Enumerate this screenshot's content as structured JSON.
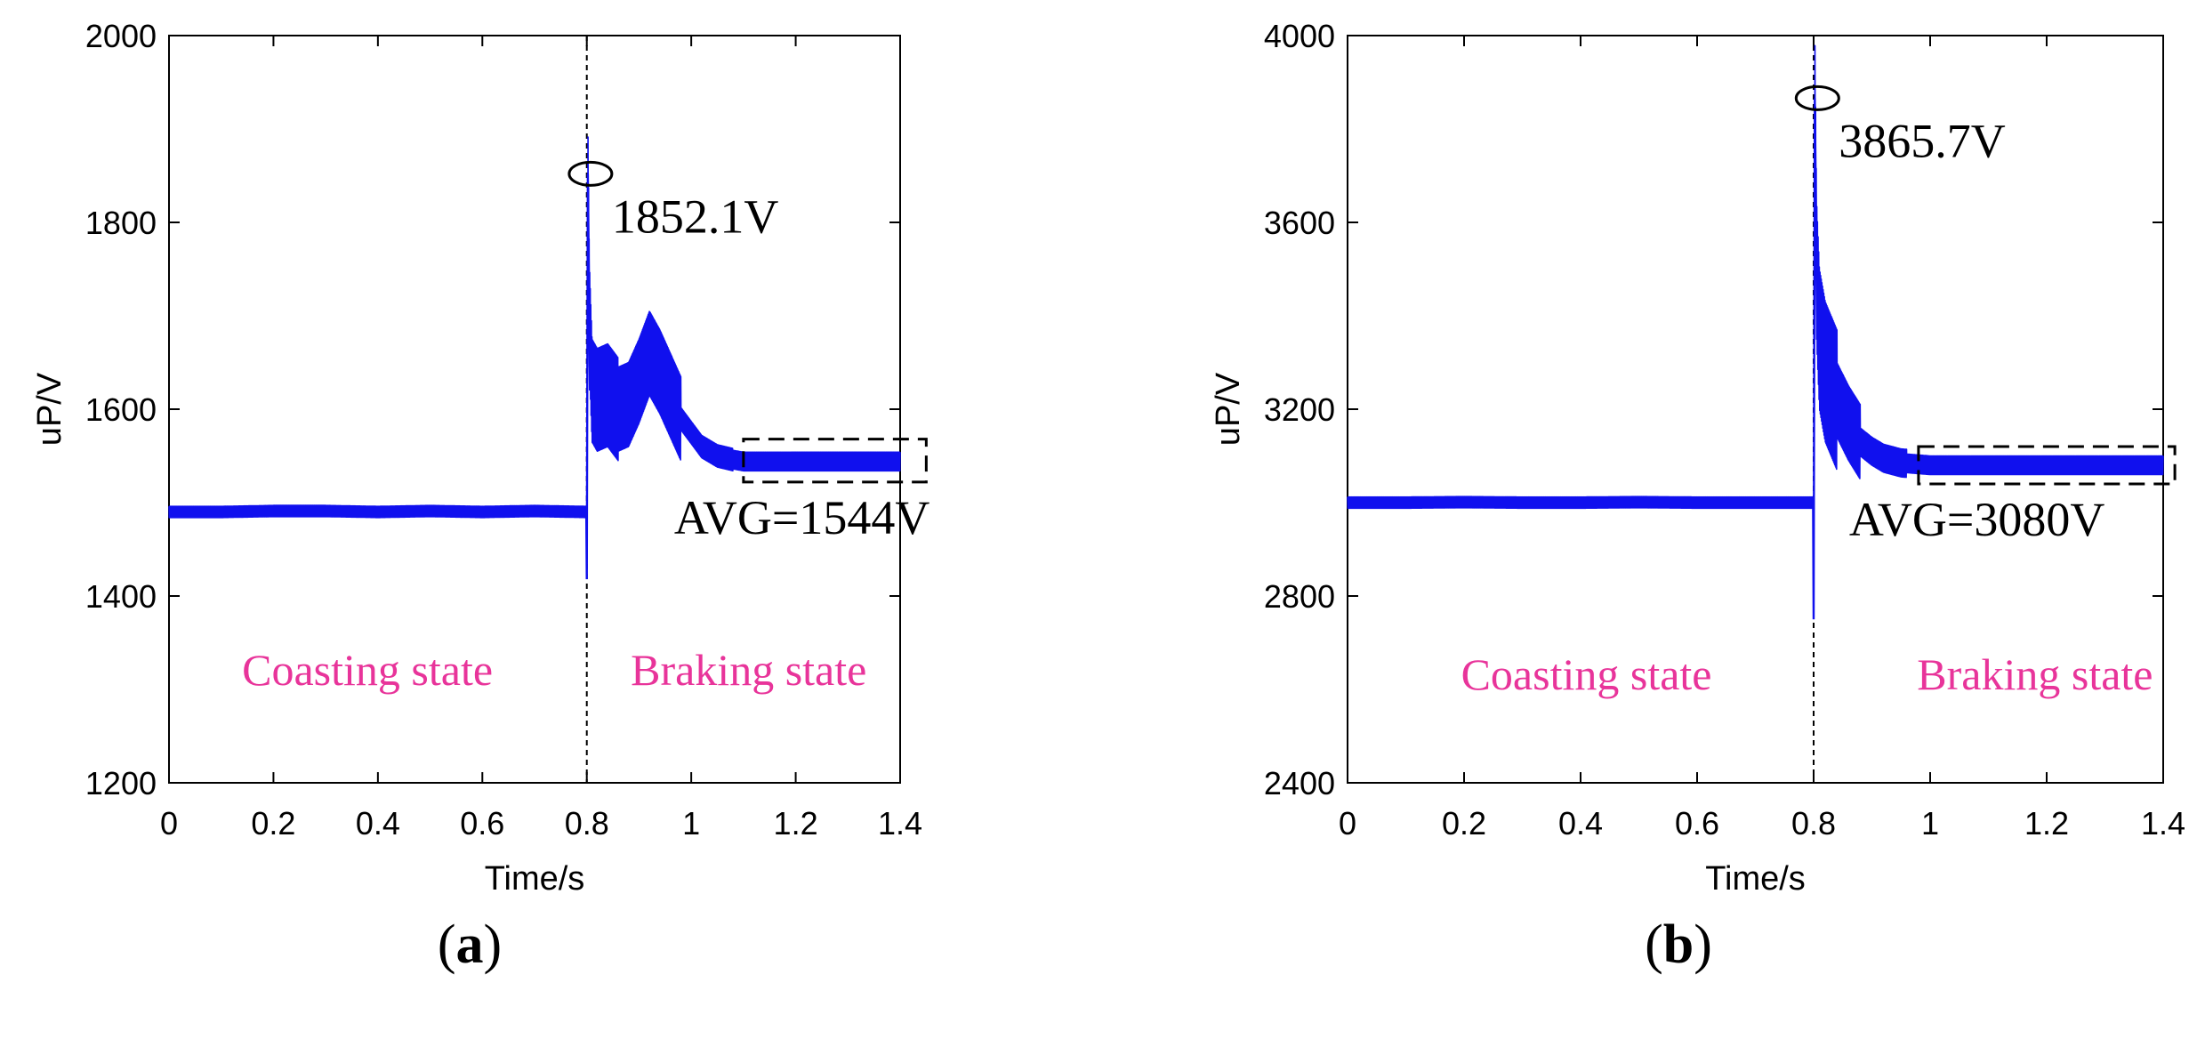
{
  "colors": {
    "signal": "#1010ee",
    "state_text": "#e8349a",
    "axis": "#000000"
  },
  "chart_data": [
    {
      "type": "line",
      "panel_label": {
        "open": "(",
        "letter": "a",
        "close": ")"
      },
      "xlabel": "Time/s",
      "ylabel": "uP/V",
      "xlim": [
        0,
        1.4
      ],
      "ylim": [
        1200,
        2000
      ],
      "xticks": [
        0,
        0.2,
        0.4,
        0.6,
        0.8,
        1,
        1.2,
        1.4
      ],
      "xtick_labels": [
        "0",
        "0.2",
        "0.4",
        "0.6",
        "0.8",
        "1",
        "1.2",
        "1.4"
      ],
      "yticks": [
        1200,
        1400,
        1600,
        1800,
        2000
      ],
      "ytick_labels": [
        "1200",
        "1400",
        "1600",
        "1800",
        "2000"
      ],
      "switch_time": 0.8,
      "series": [
        {
          "name": "uP",
          "x": [
            0,
            0.1,
            0.2,
            0.3,
            0.4,
            0.5,
            0.6,
            0.7,
            0.799,
            0.8,
            0.802,
            0.805,
            0.81,
            0.82,
            0.84,
            0.86,
            0.88,
            0.9,
            0.92,
            0.94,
            0.96,
            0.98,
            1.0,
            1.02,
            1.05,
            1.08,
            1.1,
            1.15,
            1.2,
            1.25,
            1.3,
            1.35,
            1.4
          ],
          "y": [
            1490,
            1490,
            1491,
            1491,
            1490,
            1491,
            1490,
            1491,
            1490,
            1418,
            1852,
            1700,
            1620,
            1610,
            1615,
            1600,
            1605,
            1630,
            1660,
            1640,
            1615,
            1590,
            1575,
            1560,
            1550,
            1546,
            1544,
            1544,
            1544,
            1544,
            1544,
            1544,
            1544
          ]
        }
      ],
      "ripple": [
        {
          "t0": 0,
          "t1": 0.8,
          "amp": 6
        },
        {
          "t0": 0.8,
          "t1": 0.86,
          "amp": 55
        },
        {
          "t0": 0.86,
          "t1": 0.98,
          "amp": 45
        },
        {
          "t0": 0.98,
          "t1": 1.08,
          "amp": 12
        },
        {
          "t0": 1.08,
          "t1": 1.4,
          "amp": 10
        }
      ],
      "peak": {
        "x": 0.802,
        "y": 1852,
        "label": "1852.1V"
      },
      "avg": {
        "x_from": 1.1,
        "x_to": 1.45,
        "y_from": 1522,
        "y_to": 1568,
        "label": "AVG=1544V"
      },
      "states": [
        {
          "label": "Coasting state",
          "x": 0.38,
          "y": 1305
        },
        {
          "label": "Braking state",
          "x": 1.11,
          "y": 1305
        }
      ]
    },
    {
      "type": "line",
      "panel_label": {
        "open": "(",
        "letter": "b",
        "close": ")"
      },
      "xlabel": "Time/s",
      "ylabel": "uP/V",
      "xlim": [
        0,
        1.4
      ],
      "ylim": [
        2400,
        4000
      ],
      "xticks": [
        0,
        0.2,
        0.4,
        0.6,
        0.8,
        1,
        1.2,
        1.4
      ],
      "xtick_labels": [
        "0",
        "0.2",
        "0.4",
        "0.6",
        "0.8",
        "1",
        "1.2",
        "1.4"
      ],
      "yticks": [
        2400,
        2800,
        3200,
        3600,
        4000
      ],
      "ytick_labels": [
        "2400",
        "2800",
        "3200",
        "3600",
        "4000"
      ],
      "switch_time": 0.8,
      "series": [
        {
          "name": "uP",
          "x": [
            0,
            0.1,
            0.2,
            0.3,
            0.4,
            0.5,
            0.6,
            0.7,
            0.799,
            0.8,
            0.802,
            0.805,
            0.81,
            0.82,
            0.84,
            0.86,
            0.88,
            0.9,
            0.92,
            0.95,
            0.98,
            1.0,
            1.05,
            1.1,
            1.2,
            1.3,
            1.4
          ],
          "y": [
            3000,
            3000,
            3001,
            3000,
            3000,
            3001,
            3000,
            3000,
            3000,
            2750,
            3866,
            3500,
            3350,
            3280,
            3220,
            3170,
            3130,
            3110,
            3095,
            3085,
            3082,
            3080,
            3080,
            3080,
            3080,
            3080,
            3080
          ]
        }
      ],
      "ripple": [
        {
          "t0": 0,
          "t1": 0.8,
          "amp": 12
        },
        {
          "t0": 0.8,
          "t1": 0.84,
          "amp": 150
        },
        {
          "t0": 0.84,
          "t1": 0.88,
          "amp": 80
        },
        {
          "t0": 0.88,
          "t1": 0.96,
          "amp": 30
        },
        {
          "t0": 0.96,
          "t1": 1.4,
          "amp": 20
        }
      ],
      "peak": {
        "x": 0.802,
        "y": 3866,
        "label": "3865.7V"
      },
      "avg": {
        "x_from": 0.98,
        "x_to": 1.42,
        "y_from": 3040,
        "y_to": 3120,
        "label": "AVG=3080V"
      },
      "states": [
        {
          "label": "Coasting state",
          "x": 0.41,
          "y": 2600
        },
        {
          "label": "Braking state",
          "x": 1.18,
          "y": 2600
        }
      ]
    }
  ]
}
